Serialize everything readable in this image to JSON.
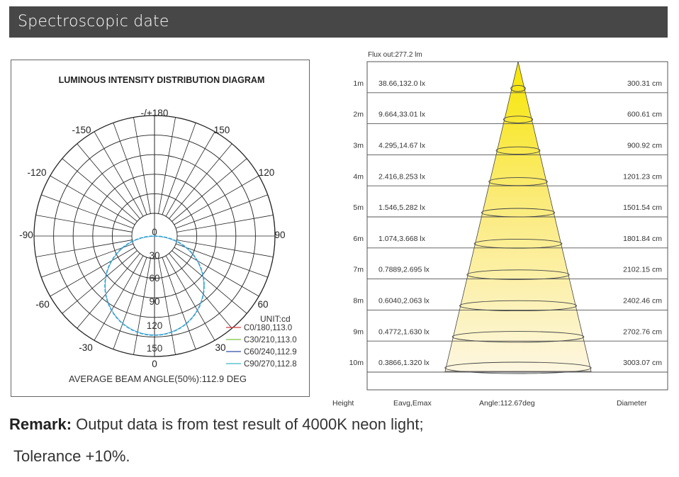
{
  "header": {
    "title": "Spectroscopic date"
  },
  "polar": {
    "title": "LUMINOUS INTENSITY DISTRIBUTION DIAGRAM",
    "angle_labels": [
      "-/+180",
      "-150",
      "150",
      "-120",
      "120",
      "-90",
      "90",
      "-60",
      "60",
      "-30",
      "30",
      "0"
    ],
    "radial_labels": [
      "0",
      "30",
      "60",
      "90",
      "120",
      "150"
    ],
    "unit": "UNIT:cd",
    "legend": [
      {
        "label": "C0/180,113.0",
        "color": "#d43b3b"
      },
      {
        "label": "C30/210,113.0",
        "color": "#7cc242"
      },
      {
        "label": "C60/240,112.9",
        "color": "#2f4fa8"
      },
      {
        "label": "C90/270,112.8",
        "color": "#3fb8c8"
      }
    ],
    "beam_angle": "AVERAGE BEAM ANGLE(50%):112.9 DEG",
    "curve_color": "#2eb4d4"
  },
  "cone": {
    "flux": "Flux out:277.2 lm",
    "rows": [
      {
        "height": "1m",
        "lux": "38.66,132.0  lx",
        "diameter": "300.31 cm"
      },
      {
        "height": "2m",
        "lux": "9.664,33.01  lx",
        "diameter": "600.61 cm"
      },
      {
        "height": "3m",
        "lux": "4.295,14.67  lx",
        "diameter": "900.92 cm"
      },
      {
        "height": "4m",
        "lux": "2.416,8.253  lx",
        "diameter": "1201.23 cm"
      },
      {
        "height": "5m",
        "lux": "1.546,5.282  lx",
        "diameter": "1501.54 cm"
      },
      {
        "height": "6m",
        "lux": "1.074,3.668  lx",
        "diameter": "1801.84 cm"
      },
      {
        "height": "7m",
        "lux": "0.7889,2.695  lx",
        "diameter": "2102.15 cm"
      },
      {
        "height": "8m",
        "lux": "0.6040,2.063  lx",
        "diameter": "2402.46 cm"
      },
      {
        "height": "9m",
        "lux": "0.4772,1.630  lx",
        "diameter": "2702.76 cm"
      },
      {
        "height": "10m",
        "lux": "0.3866,1.320  lx",
        "diameter": "3003.07 cm"
      }
    ],
    "footer": {
      "height": "Height",
      "eavg": "Eavg,Emax",
      "angle": "Angle:112.67deg",
      "diameter": "Diameter"
    }
  },
  "chart_data": [
    {
      "type": "polar",
      "title": "LUMINOUS INTENSITY DISTRIBUTION DIAGRAM",
      "unit": "cd",
      "angles_deg": [
        -180,
        -150,
        -120,
        -90,
        -60,
        -30,
        0,
        30,
        60,
        90,
        120,
        150
      ],
      "radial_ticks": [
        0,
        30,
        60,
        90,
        120,
        150
      ],
      "series": [
        {
          "name": "C0/180,113.0",
          "beam_angle": 113.0
        },
        {
          "name": "C30/210,113.0",
          "beam_angle": 113.0
        },
        {
          "name": "C60/240,112.9",
          "beam_angle": 112.9
        },
        {
          "name": "C90/270,112.8",
          "beam_angle": 112.8
        }
      ],
      "average_beam_angle_deg": 112.9
    },
    {
      "type": "table",
      "title": "Flux out:277.2 lm",
      "columns": [
        "Height",
        "Eavg,Emax",
        "Diameter"
      ],
      "rows": [
        [
          "1m",
          "38.66,132.0 lx",
          "300.31 cm"
        ],
        [
          "2m",
          "9.664,33.01 lx",
          "600.61 cm"
        ],
        [
          "3m",
          "4.295,14.67 lx",
          "900.92 cm"
        ],
        [
          "4m",
          "2.416,8.253 lx",
          "1201.23 cm"
        ],
        [
          "5m",
          "1.546,5.282 lx",
          "1501.54 cm"
        ],
        [
          "6m",
          "1.074,3.668 lx",
          "1801.84 cm"
        ],
        [
          "7m",
          "0.7889,2.695 lx",
          "2102.15 cm"
        ],
        [
          "8m",
          "0.6040,2.063 lx",
          "2402.46 cm"
        ],
        [
          "9m",
          "0.4772,1.630 lx",
          "2702.76 cm"
        ],
        [
          "10m",
          "0.3866,1.320 lx",
          "3003.07 cm"
        ]
      ],
      "angle_deg": 112.67
    }
  ],
  "remark": {
    "label": "Remark:",
    "text": " Output data is from test result of 4000K neon light;",
    "tolerance": "Tolerance +10%."
  }
}
